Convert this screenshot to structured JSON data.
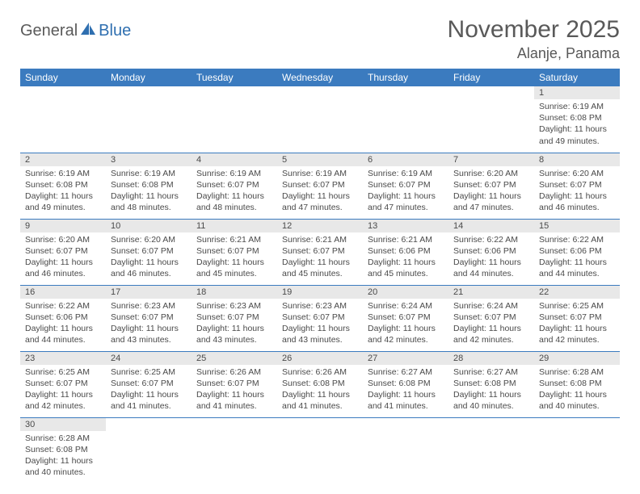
{
  "logo": {
    "general": "General",
    "blue": "Blue"
  },
  "title": "November 2025",
  "location": "Alanje, Panama",
  "header_color": "#3b7bbf",
  "daybar_color": "#e8e8e8",
  "text_color": "#4a4a4a",
  "days": [
    "Sunday",
    "Monday",
    "Tuesday",
    "Wednesday",
    "Thursday",
    "Friday",
    "Saturday"
  ],
  "weeks": [
    [
      null,
      null,
      null,
      null,
      null,
      null,
      {
        "n": "1",
        "sr": "6:19 AM",
        "ss": "6:08 PM",
        "dl": "11 hours and 49 minutes."
      }
    ],
    [
      {
        "n": "2",
        "sr": "6:19 AM",
        "ss": "6:08 PM",
        "dl": "11 hours and 49 minutes."
      },
      {
        "n": "3",
        "sr": "6:19 AM",
        "ss": "6:08 PM",
        "dl": "11 hours and 48 minutes."
      },
      {
        "n": "4",
        "sr": "6:19 AM",
        "ss": "6:07 PM",
        "dl": "11 hours and 48 minutes."
      },
      {
        "n": "5",
        "sr": "6:19 AM",
        "ss": "6:07 PM",
        "dl": "11 hours and 47 minutes."
      },
      {
        "n": "6",
        "sr": "6:19 AM",
        "ss": "6:07 PM",
        "dl": "11 hours and 47 minutes."
      },
      {
        "n": "7",
        "sr": "6:20 AM",
        "ss": "6:07 PM",
        "dl": "11 hours and 47 minutes."
      },
      {
        "n": "8",
        "sr": "6:20 AM",
        "ss": "6:07 PM",
        "dl": "11 hours and 46 minutes."
      }
    ],
    [
      {
        "n": "9",
        "sr": "6:20 AM",
        "ss": "6:07 PM",
        "dl": "11 hours and 46 minutes."
      },
      {
        "n": "10",
        "sr": "6:20 AM",
        "ss": "6:07 PM",
        "dl": "11 hours and 46 minutes."
      },
      {
        "n": "11",
        "sr": "6:21 AM",
        "ss": "6:07 PM",
        "dl": "11 hours and 45 minutes."
      },
      {
        "n": "12",
        "sr": "6:21 AM",
        "ss": "6:07 PM",
        "dl": "11 hours and 45 minutes."
      },
      {
        "n": "13",
        "sr": "6:21 AM",
        "ss": "6:06 PM",
        "dl": "11 hours and 45 minutes."
      },
      {
        "n": "14",
        "sr": "6:22 AM",
        "ss": "6:06 PM",
        "dl": "11 hours and 44 minutes."
      },
      {
        "n": "15",
        "sr": "6:22 AM",
        "ss": "6:06 PM",
        "dl": "11 hours and 44 minutes."
      }
    ],
    [
      {
        "n": "16",
        "sr": "6:22 AM",
        "ss": "6:06 PM",
        "dl": "11 hours and 44 minutes."
      },
      {
        "n": "17",
        "sr": "6:23 AM",
        "ss": "6:07 PM",
        "dl": "11 hours and 43 minutes."
      },
      {
        "n": "18",
        "sr": "6:23 AM",
        "ss": "6:07 PM",
        "dl": "11 hours and 43 minutes."
      },
      {
        "n": "19",
        "sr": "6:23 AM",
        "ss": "6:07 PM",
        "dl": "11 hours and 43 minutes."
      },
      {
        "n": "20",
        "sr": "6:24 AM",
        "ss": "6:07 PM",
        "dl": "11 hours and 42 minutes."
      },
      {
        "n": "21",
        "sr": "6:24 AM",
        "ss": "6:07 PM",
        "dl": "11 hours and 42 minutes."
      },
      {
        "n": "22",
        "sr": "6:25 AM",
        "ss": "6:07 PM",
        "dl": "11 hours and 42 minutes."
      }
    ],
    [
      {
        "n": "23",
        "sr": "6:25 AM",
        "ss": "6:07 PM",
        "dl": "11 hours and 42 minutes."
      },
      {
        "n": "24",
        "sr": "6:25 AM",
        "ss": "6:07 PM",
        "dl": "11 hours and 41 minutes."
      },
      {
        "n": "25",
        "sr": "6:26 AM",
        "ss": "6:07 PM",
        "dl": "11 hours and 41 minutes."
      },
      {
        "n": "26",
        "sr": "6:26 AM",
        "ss": "6:08 PM",
        "dl": "11 hours and 41 minutes."
      },
      {
        "n": "27",
        "sr": "6:27 AM",
        "ss": "6:08 PM",
        "dl": "11 hours and 41 minutes."
      },
      {
        "n": "28",
        "sr": "6:27 AM",
        "ss": "6:08 PM",
        "dl": "11 hours and 40 minutes."
      },
      {
        "n": "29",
        "sr": "6:28 AM",
        "ss": "6:08 PM",
        "dl": "11 hours and 40 minutes."
      }
    ],
    [
      {
        "n": "30",
        "sr": "6:28 AM",
        "ss": "6:08 PM",
        "dl": "11 hours and 40 minutes."
      },
      null,
      null,
      null,
      null,
      null,
      null
    ]
  ],
  "labels": {
    "sunrise": "Sunrise:",
    "sunset": "Sunset:",
    "daylight": "Daylight:"
  }
}
